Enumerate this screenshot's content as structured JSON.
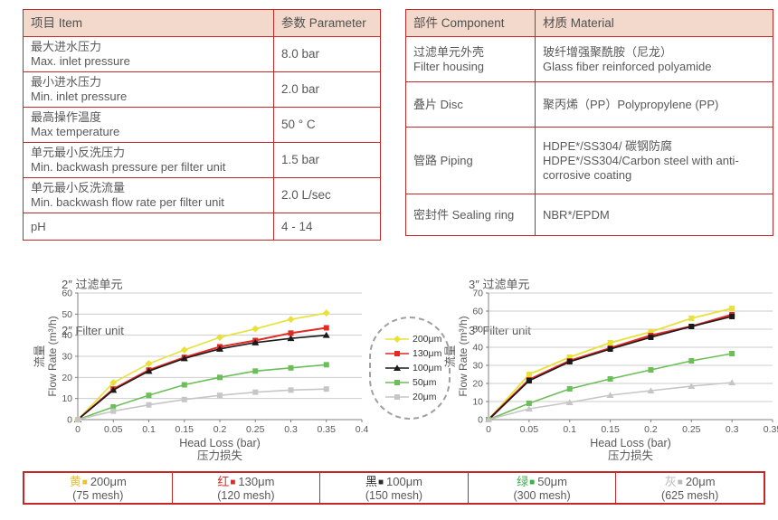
{
  "palette": {
    "table_border": "#c22a29",
    "table_header_bg": "#f3d9cb",
    "grid": "#cdcdcd",
    "axis": "#808080",
    "text": "#595959"
  },
  "tables": {
    "spec": {
      "headers": [
        "项目 Item",
        "参数 Parameter"
      ],
      "rows": [
        {
          "item_zh": "最大进水压力",
          "item_en": "Max. inlet pressure",
          "value": "8.0 bar"
        },
        {
          "item_zh": "最小进水压力",
          "item_en": "Min. inlet pressure",
          "value": "2.0 bar"
        },
        {
          "item_zh": "最高操作温度",
          "item_en": "Max temperature",
          "value": "50 ° C"
        },
        {
          "item_zh": "单元最小反洗压力",
          "item_en": "Min. backwash pressure per filter unit",
          "value": "1.5 bar"
        },
        {
          "item_zh": "单元最小反洗流量",
          "item_en": "Min. backwash flow rate per filter unit",
          "value": "2.0 L/sec"
        },
        {
          "item_zh": "pH",
          "item_en": "",
          "value": "4 - 14"
        }
      ]
    },
    "materials": {
      "headers": [
        "部件 Component",
        "材质 Material"
      ],
      "rows": [
        {
          "component_zh": "过滤单元外壳",
          "component_en": "Filter housing",
          "material_zh": "玻纤增强聚酰胺（尼龙）",
          "material_en": "Glass fiber reinforced polyamide"
        },
        {
          "component_zh": "叠片 Disc",
          "component_en": "",
          "material_zh": "聚丙烯（PP）Polypropylene (PP)",
          "material_en": ""
        },
        {
          "component_zh": "管路 Piping",
          "component_en": "",
          "material_zh": "HDPE*/SS304/ 碳钢防腐",
          "material_en": "HDPE*/SS304/Carbon steel with anti-corrosive coating"
        },
        {
          "component_zh": "密封件 Sealing ring",
          "component_en": "",
          "material_zh": "NBR*/EPDM",
          "material_en": ""
        }
      ]
    }
  },
  "chart_data": [
    {
      "type": "line",
      "title_zh": "2″ 过滤单元",
      "title_en": "2″ Filter unit",
      "xlabel": "Head Loss (bar)",
      "xlabel_zh": "压力损失",
      "ylabel_zh": "流量",
      "ylabel": "Flow Rate (m³/h)",
      "xlim": [
        0,
        0.4
      ],
      "xtick_step": 0.05,
      "ylim": [
        0,
        60
      ],
      "ytick_step": 10,
      "grid": "horizontal",
      "x": [
        0,
        0.05,
        0.1,
        0.15,
        0.2,
        0.25,
        0.3,
        0.35
      ],
      "series": [
        {
          "name": "200μm",
          "color": "#e8e13a",
          "marker": "diamond",
          "width": 1.6,
          "values": [
            0,
            17.5,
            26.5,
            33,
            39,
            43,
            47.5,
            50.5
          ]
        },
        {
          "name": "130μm",
          "color": "#e02a23",
          "marker": "square",
          "width": 2.0,
          "values": [
            0,
            14.5,
            23.5,
            29.5,
            34.5,
            37.5,
            41,
            43.5
          ]
        },
        {
          "name": "100μm",
          "color": "#1a1a1a",
          "marker": "triangle",
          "width": 1.6,
          "values": [
            0,
            14,
            23,
            29,
            33.5,
            36.5,
            38.5,
            40
          ]
        },
        {
          "name": "50μm",
          "color": "#6cbf58",
          "marker": "square",
          "width": 1.6,
          "values": [
            0,
            6,
            11.5,
            16.5,
            20,
            23,
            24.5,
            26
          ]
        },
        {
          "name": "20μm",
          "color": "#c6c6c6",
          "marker": "square",
          "width": 1.6,
          "values": [
            0,
            4,
            7,
            9.5,
            11.5,
            13,
            14,
            14.5
          ]
        }
      ]
    },
    {
      "type": "line",
      "title_zh": "3″ 过滤单元",
      "title_en": "3″ Filter unit",
      "xlabel": "Head Loss (bar)",
      "xlabel_zh": "压力损失",
      "ylabel_zh": "流量",
      "ylabel": "Flow Rate (m³/h)",
      "xlim": [
        0,
        0.35
      ],
      "xtick_step": 0.05,
      "ylim": [
        0,
        70
      ],
      "ytick_step": 10,
      "grid": "horizontal",
      "x": [
        0,
        0.05,
        0.1,
        0.15,
        0.2,
        0.25,
        0.3
      ],
      "series": [
        {
          "name": "200μm",
          "color": "#e8e13a",
          "marker": "square",
          "width": 1.8,
          "values": [
            0,
            25,
            34.5,
            42.5,
            48.5,
            56,
            61.5
          ]
        },
        {
          "name": "130μm",
          "color": "#e02a23",
          "marker": "square",
          "width": 2.4,
          "values": [
            0,
            22,
            32.5,
            39.5,
            46.5,
            51.5,
            58
          ]
        },
        {
          "name": "100μm",
          "color": "#1a1a1a",
          "marker": "square",
          "width": 1.6,
          "values": [
            0,
            21.5,
            32,
            39,
            45.5,
            51.5,
            57
          ]
        },
        {
          "name": "50μm",
          "color": "#6cbf58",
          "marker": "square",
          "width": 1.6,
          "values": [
            0,
            9,
            17,
            22.5,
            27.5,
            32.5,
            36.5
          ]
        },
        {
          "name": "20μm",
          "color": "#c6c6c6",
          "marker": "triangle",
          "width": 1.6,
          "values": [
            0,
            6,
            9.5,
            13.5,
            16,
            18.5,
            20.5
          ]
        }
      ]
    }
  ],
  "legend_box": {
    "items": [
      {
        "label": "200μm",
        "color": "#e8e13a",
        "marker": "diamond"
      },
      {
        "label": "130μm",
        "color": "#e02a23",
        "marker": "square"
      },
      {
        "label": "100μm",
        "color": "#1a1a1a",
        "marker": "triangle"
      },
      {
        "label": "50μm",
        "color": "#6cbf58",
        "marker": "square"
      },
      {
        "label": "20μm",
        "color": "#c6c6c6",
        "marker": "square"
      }
    ]
  },
  "bottom_bar": {
    "cells": [
      {
        "color_name": "黄",
        "marker": "■",
        "color": "#eec11f",
        "size": "200μm",
        "mesh": "(75 mesh)"
      },
      {
        "color_name": "红",
        "marker": "■",
        "color": "#e02a23",
        "size": "130μm",
        "mesh": "(120 mesh)"
      },
      {
        "color_name": "黑",
        "marker": "■",
        "color": "#2b2b2b",
        "size": "100μm",
        "mesh": "(150 mesh)"
      },
      {
        "color_name": "绿",
        "marker": "■",
        "color": "#3fae4a",
        "size": "50μm",
        "mesh": "(300 mesh)"
      },
      {
        "color_name": "灰",
        "marker": "■",
        "color": "#b9b9b9",
        "size": "20μm",
        "mesh": "(625 mesh)"
      }
    ]
  }
}
